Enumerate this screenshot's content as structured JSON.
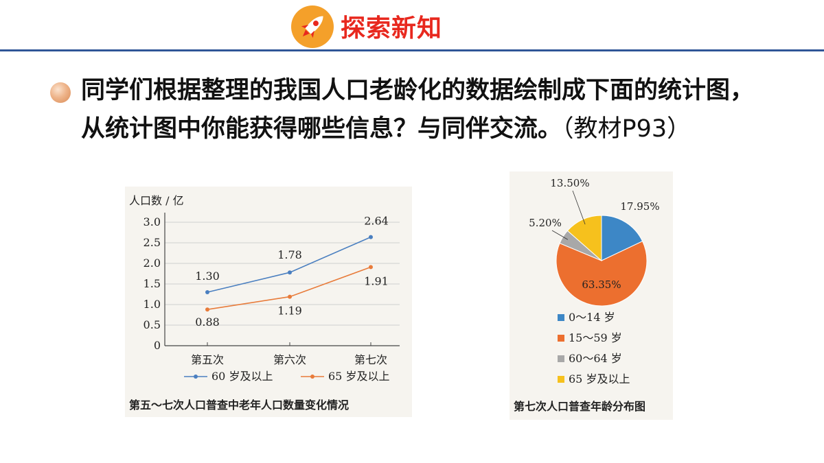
{
  "header": {
    "title": "探索新知",
    "icon": "rocket-icon"
  },
  "question": {
    "text": "同学们根据整理的我国人口老龄化的数据绘制成下面的统计图，从统计图中你能获得哪些信息？与同伴交流。",
    "reference": "（教材P93）"
  },
  "chart_data": [
    {
      "type": "line",
      "title": "第五～七次人口普查中老年人口数量变化情况",
      "ylabel": "人口数 / 亿",
      "xlabel": "",
      "categories": [
        "第五次",
        "第六次",
        "第七次"
      ],
      "ylim": [
        0,
        3.0
      ],
      "yticks": [
        "0",
        "0.5",
        "1.0",
        "1.5",
        "2.0",
        "2.5",
        "3.0"
      ],
      "grid": true,
      "legend_position": "bottom",
      "series": [
        {
          "name": "60 岁及以上",
          "values": [
            1.3,
            1.78,
            2.64
          ],
          "labels": [
            "1.30",
            "1.78",
            "2.64"
          ],
          "color": "#4a7fc0"
        },
        {
          "name": "65 岁及以上",
          "values": [
            0.88,
            1.19,
            1.91
          ],
          "labels": [
            "0.88",
            "1.19",
            "1.91"
          ],
          "color": "#e87b3a"
        }
      ]
    },
    {
      "type": "pie",
      "title": "第七次人口普查年龄分布图",
      "legend_position": "bottom",
      "slices": [
        {
          "name": "0～14 岁",
          "value": 17.95,
          "label": "17.95%",
          "color": "#3d87c6"
        },
        {
          "name": "15～59 岁",
          "value": 63.35,
          "label": "63.35%",
          "color": "#ec6f2f"
        },
        {
          "name": "60～64 岁",
          "value": 5.2,
          "label": "5.20%",
          "color": "#a8a8a8"
        },
        {
          "name": "65 岁及以上",
          "value": 13.5,
          "label": "13.50%",
          "color": "#f6c11d"
        }
      ]
    }
  ]
}
